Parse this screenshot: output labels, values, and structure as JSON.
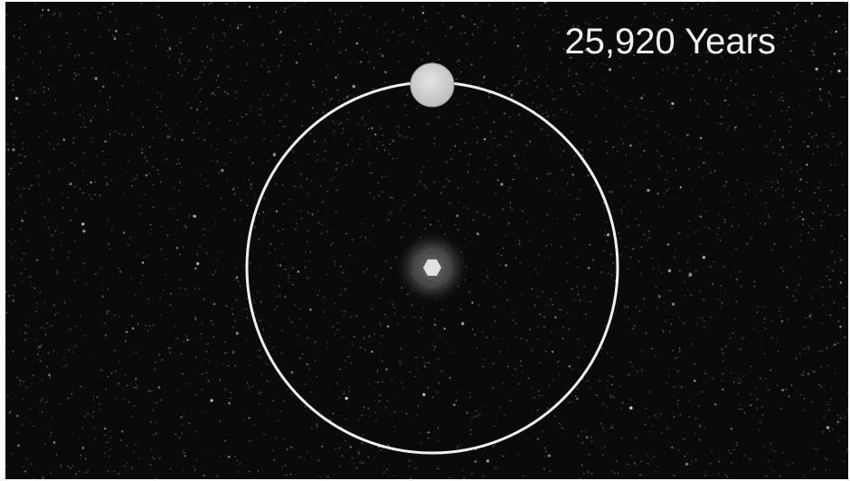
{
  "caption": "25,920 Years",
  "colors": {
    "sky": "#0a0a0a",
    "orbit": "#f0f0f0",
    "orbiting_body": "#cfcfcf",
    "central_star": "#d8d8d8",
    "caption_text": "#f2f2f2"
  },
  "icons": {
    "orbiting_body": "orbiting-body-icon",
    "central_star": "central-star-icon"
  }
}
